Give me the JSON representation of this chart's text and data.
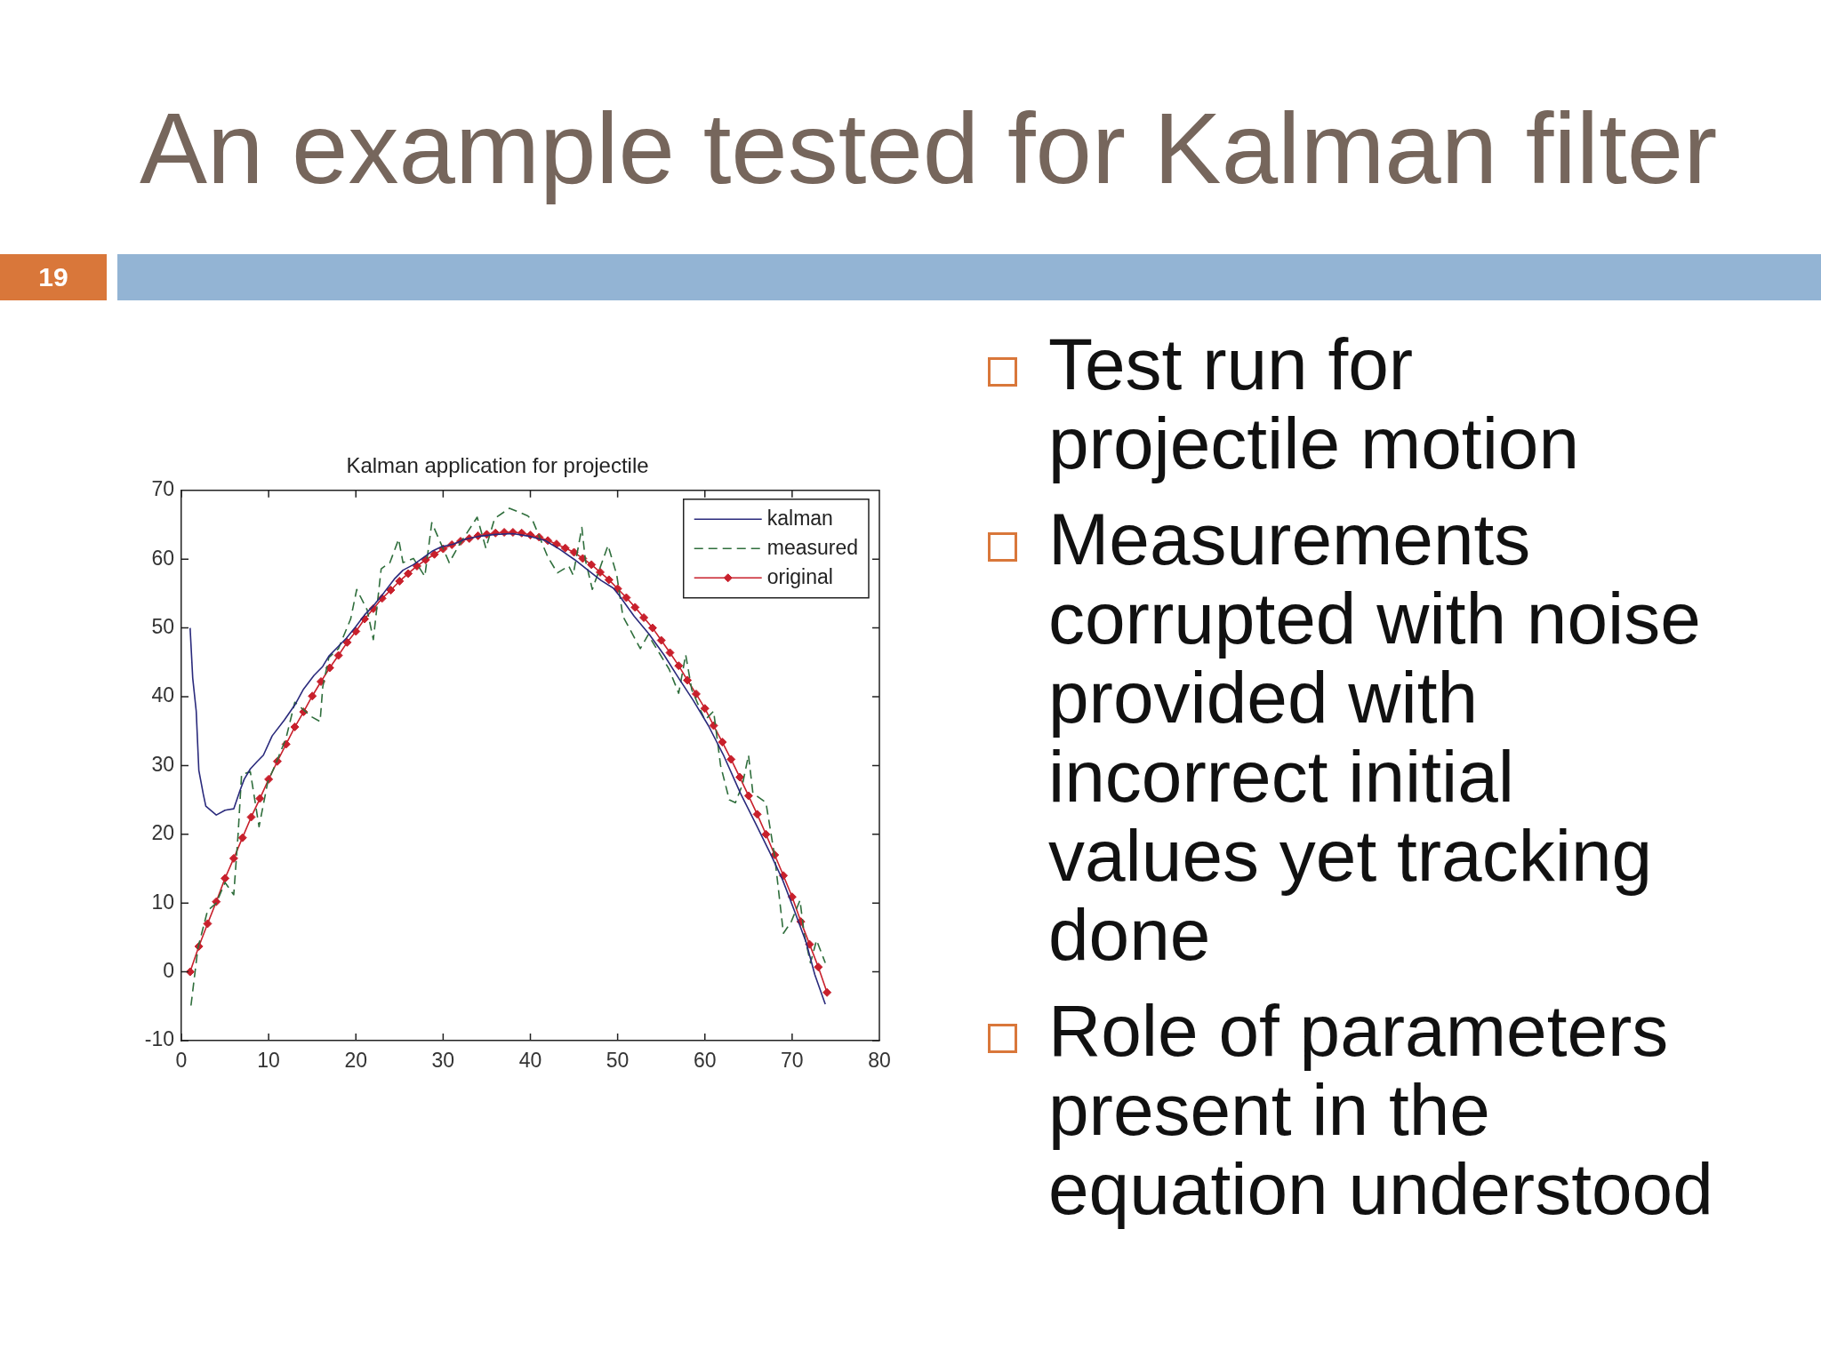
{
  "chart_data": {
    "type": "line",
    "title": "Kalman application for projectile",
    "annotations": [
      "An example tested for Kalman filter",
      "19",
      "Test run for projectile motion",
      "Measurements corrupted with noise provided with incorrect initial values yet tracking done",
      "Role of parameters present in the equation understood"
    ],
    "xlim": [
      0,
      80
    ],
    "xticks": [
      0,
      10,
      20,
      30,
      40,
      50,
      60,
      70,
      80
    ],
    "ylim": [
      -10,
      70
    ],
    "yticks": [
      -10,
      0,
      10,
      20,
      30,
      40,
      50,
      60,
      70
    ],
    "grid": false,
    "legend": "top right",
    "series": [
      {
        "name": "kalman",
        "color": "#2a2a7c",
        "line_style": "solid",
        "marker": "none",
        "x": [
          1,
          1.3,
          1.7,
          2,
          2.5,
          2.8,
          4,
          5,
          6,
          6.7,
          7.2,
          7.9,
          8.7,
          9.4,
          10.4,
          11.8,
          13,
          14,
          15.2,
          16.2,
          16.9,
          17.9,
          18.9,
          20,
          21,
          22,
          23.2,
          24.4,
          25.4,
          26.6,
          27.6,
          28.8,
          29.8,
          31.2,
          32.5,
          34,
          36,
          38,
          40,
          41.7,
          43.4,
          45.1,
          46.8,
          48.1,
          49.5,
          50.2,
          51.9,
          53.6,
          55.3,
          57,
          58.7,
          60.4,
          62.1,
          64.1,
          65.8,
          67.5,
          68.9,
          70.2,
          71.6,
          72.6,
          73.8
        ],
        "values": [
          50,
          42.7,
          37.9,
          29.3,
          25.9,
          24.1,
          22.8,
          23.5,
          23.7,
          26.3,
          28,
          29.5,
          30.6,
          31.5,
          34.3,
          36.6,
          38.8,
          41.1,
          43.1,
          44.4,
          45.9,
          47.2,
          48.5,
          50.2,
          51.9,
          53.2,
          55.1,
          57.1,
          58.4,
          59.2,
          60.1,
          61.2,
          61.8,
          62.2,
          62.9,
          63.3,
          63.6,
          63.7,
          63.3,
          62.7,
          61.4,
          59.9,
          58.2,
          56.9,
          55.8,
          54.7,
          51.7,
          49.1,
          46.1,
          42.7,
          39.4,
          35.8,
          31.6,
          25.9,
          21.6,
          17.2,
          13.4,
          9.1,
          4.3,
          -0.4,
          -4.7
        ]
      },
      {
        "name": "measured",
        "color": "#2f6e3c",
        "line_style": "dashed",
        "marker": "none",
        "x": [
          1.1,
          1.9,
          3,
          4,
          5,
          6,
          6.5,
          6.9,
          7.9,
          8.9,
          9.9,
          10.8,
          12,
          13,
          14.9,
          15.9,
          16.2,
          16.9,
          18,
          19.4,
          20.1,
          21.3,
          22,
          22.9,
          23.9,
          24.9,
          25.4,
          26.6,
          27.9,
          28.7,
          30.7,
          31.8,
          33.9,
          34.9,
          35.9,
          37.6,
          39.7,
          40.3,
          42,
          43.1,
          44.4,
          44.9,
          45.9,
          46.3,
          47.1,
          48.9,
          49.9,
          50.6,
          52.6,
          53.5,
          55.9,
          57,
          57.8,
          58.5,
          60,
          61,
          61.8,
          62.8,
          63.5,
          64.3,
          65,
          65.5,
          67,
          68,
          68.5,
          69,
          69.9,
          70.9,
          71.4,
          72.1,
          72.8,
          73.8
        ],
        "values": [
          -4.9,
          3.5,
          8.9,
          10,
          13,
          11.2,
          20,
          28.7,
          29.1,
          21.1,
          27.6,
          30.2,
          34,
          39.2,
          37.1,
          36.4,
          41.4,
          45.7,
          47,
          51.3,
          55.6,
          52.6,
          48.3,
          58.6,
          59.5,
          62.9,
          59.5,
          60.1,
          57.5,
          65.3,
          59.5,
          62,
          66.1,
          61.6,
          65.9,
          67.4,
          66.3,
          65.5,
          60.3,
          58,
          59,
          57.7,
          64.6,
          59.9,
          55.6,
          62,
          57.7,
          51.7,
          47,
          49,
          44,
          40.5,
          46.1,
          41,
          36.6,
          37.9,
          30,
          25,
          24.6,
          27.2,
          31.5,
          26,
          24.6,
          16.8,
          11.2,
          5.6,
          7.3,
          10.4,
          5.4,
          1.3,
          4.6,
          1.3
        ]
      },
      {
        "name": "original",
        "color": "#c8202c",
        "line_style": "solid",
        "marker": "diamond",
        "x": [
          1,
          2,
          3,
          4,
          5,
          6,
          7,
          8,
          9,
          10,
          11,
          12,
          13,
          14,
          15,
          16,
          17,
          18,
          19,
          20,
          21,
          22,
          23,
          24,
          25,
          26,
          27,
          28,
          29,
          30,
          31,
          32,
          33,
          34,
          35,
          36,
          37,
          38,
          39,
          40,
          41,
          42,
          43,
          44,
          45,
          46,
          47,
          48,
          49,
          50,
          51,
          52,
          53,
          54,
          55,
          56,
          57,
          58,
          59,
          60,
          61,
          62,
          63,
          64,
          65,
          66,
          67,
          68,
          69,
          70,
          71,
          72,
          73,
          74
        ],
        "values": [
          0,
          3.7,
          7,
          10.2,
          13.6,
          16.5,
          19.5,
          22.5,
          25.2,
          28,
          30.6,
          33.1,
          35.6,
          37.8,
          40.1,
          42.2,
          44.2,
          46,
          47.9,
          49.5,
          51.3,
          52.8,
          54.3,
          55.5,
          56.8,
          57.9,
          59,
          59.9,
          60.7,
          61.5,
          62.1,
          62.6,
          63,
          63.4,
          63.6,
          63.8,
          63.9,
          63.9,
          63.8,
          63.5,
          63.2,
          62.7,
          62.2,
          61.6,
          61,
          60.1,
          59.2,
          58.1,
          57,
          55.7,
          54.4,
          53,
          51.5,
          50,
          48.2,
          46.4,
          44.5,
          42.4,
          40.4,
          38.3,
          35.8,
          33.4,
          30.9,
          28.3,
          25.6,
          22.9,
          20,
          17,
          14,
          10.9,
          7.3,
          4,
          0.7,
          -3
        ]
      }
    ]
  }
}
